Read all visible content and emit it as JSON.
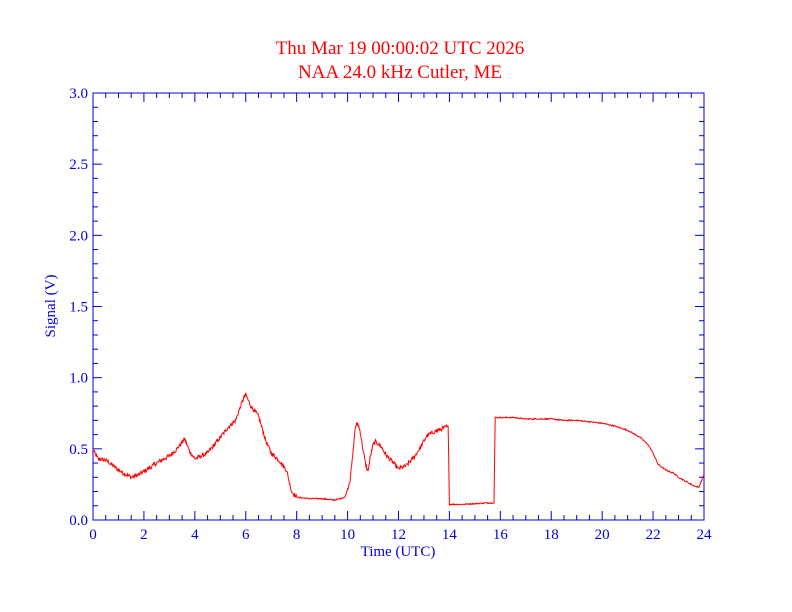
{
  "chart_data": {
    "type": "line",
    "title": "Thu Mar 19 00:00:02 UTC 2026",
    "subtitle": "NAA 24.0 kHz Cutler, ME",
    "xlabel": "Time (UTC)",
    "ylabel": "Signal (V)",
    "xlim": [
      0,
      24
    ],
    "ylim": [
      0,
      3.0
    ],
    "xticks": [
      0,
      2,
      4,
      6,
      8,
      10,
      12,
      14,
      16,
      18,
      20,
      22,
      24
    ],
    "xtick_labels": [
      "0",
      "2",
      "4",
      "6",
      "8",
      "10",
      "12",
      "14",
      "16",
      "18",
      "20",
      "22",
      "24"
    ],
    "yticks": [
      0,
      0.5,
      1.0,
      1.5,
      2.0,
      2.5,
      3.0
    ],
    "ytick_labels": [
      "0.0",
      "0.5",
      "1.0",
      "1.5",
      "2.0",
      "2.5",
      "3.0"
    ],
    "grid": false,
    "colors": {
      "series": "#ff0000",
      "axes": "#0000dd",
      "title": "#ff0000"
    },
    "series": [
      {
        "x": [
          0,
          0.2,
          0.5,
          0.8,
          1.0,
          1.3,
          1.5,
          1.8,
          2.0,
          2.5,
          3.0,
          3.3,
          3.6,
          3.8,
          4.0,
          4.5,
          5.0,
          5.3,
          5.6,
          5.8,
          5.9,
          6.0,
          6.2,
          6.5,
          6.8,
          7.0,
          7.3,
          7.6,
          7.8,
          8.0,
          8.5,
          9.0,
          9.5,
          9.9,
          10.1,
          10.2,
          10.3,
          10.4,
          10.5,
          10.6,
          10.7,
          10.8,
          10.9,
          11.0,
          11.1,
          11.3,
          11.5,
          11.8,
          12.0,
          12.3,
          12.6,
          12.9,
          13.1,
          13.4,
          13.7,
          13.95,
          14.0,
          14.05,
          14.5,
          15.0,
          15.5,
          15.75,
          15.8,
          16.0,
          16.5,
          17.0,
          17.5,
          18.0,
          18.5,
          19.0,
          19.5,
          20.0,
          20.5,
          21.0,
          21.5,
          21.8,
          22.0,
          22.2,
          22.5,
          22.8,
          23.0,
          23.3,
          23.6,
          23.8,
          24.0
        ],
        "values": [
          0.49,
          0.43,
          0.42,
          0.38,
          0.35,
          0.32,
          0.3,
          0.32,
          0.34,
          0.4,
          0.45,
          0.5,
          0.57,
          0.48,
          0.43,
          0.47,
          0.58,
          0.65,
          0.7,
          0.8,
          0.85,
          0.88,
          0.8,
          0.73,
          0.55,
          0.47,
          0.42,
          0.35,
          0.2,
          0.16,
          0.15,
          0.15,
          0.14,
          0.16,
          0.28,
          0.45,
          0.65,
          0.68,
          0.62,
          0.5,
          0.4,
          0.34,
          0.45,
          0.53,
          0.55,
          0.52,
          0.46,
          0.4,
          0.36,
          0.38,
          0.44,
          0.52,
          0.59,
          0.62,
          0.64,
          0.66,
          0.11,
          0.11,
          0.11,
          0.115,
          0.12,
          0.12,
          0.72,
          0.72,
          0.72,
          0.71,
          0.71,
          0.71,
          0.7,
          0.7,
          0.69,
          0.68,
          0.66,
          0.63,
          0.58,
          0.53,
          0.47,
          0.39,
          0.35,
          0.33,
          0.3,
          0.27,
          0.24,
          0.23,
          0.32
        ]
      }
    ]
  }
}
